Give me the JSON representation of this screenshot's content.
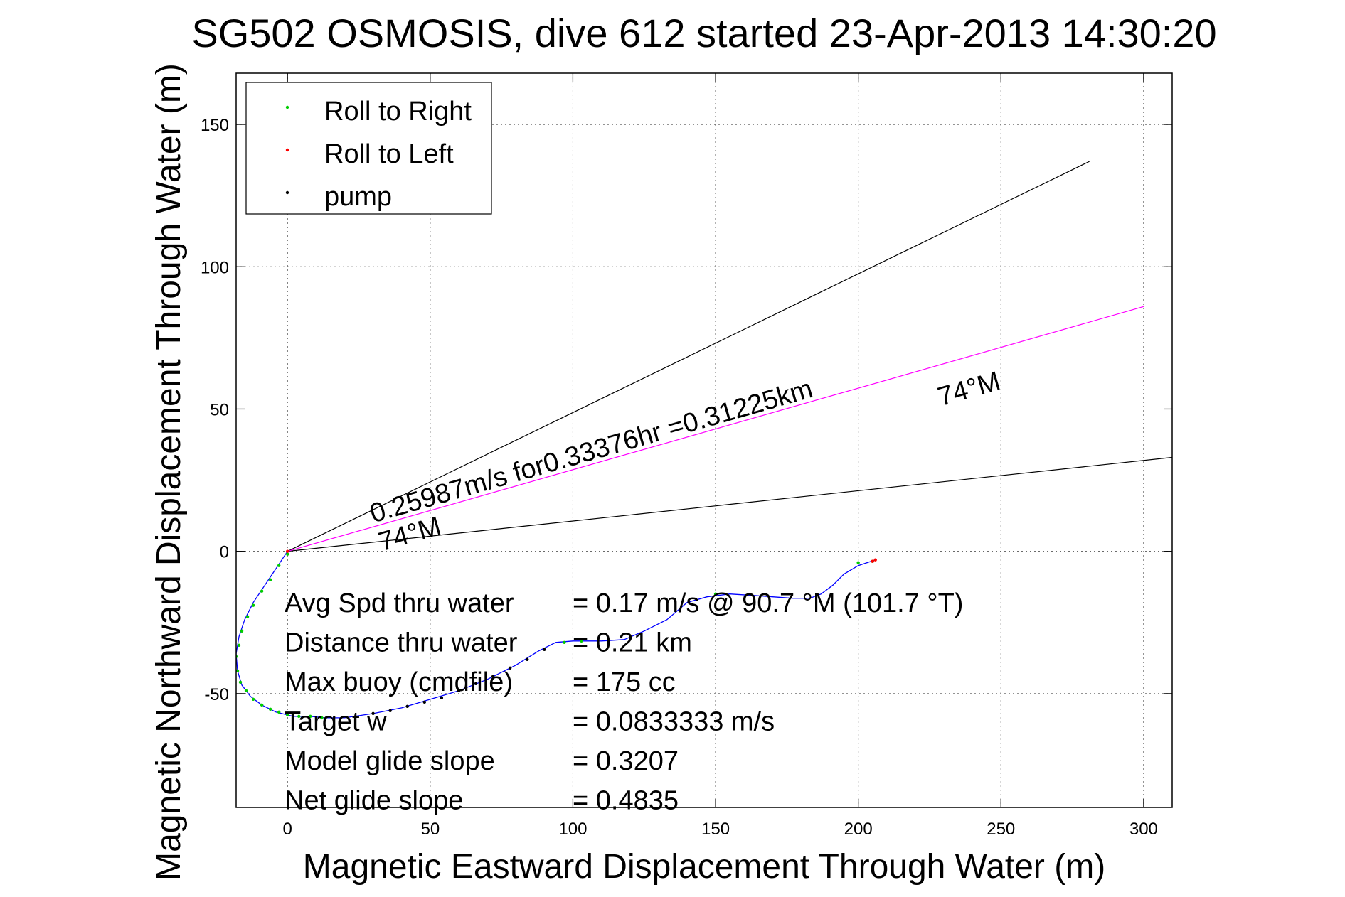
{
  "chart_data": {
    "type": "scatter",
    "title": "SG502 OSMOSIS, dive 612 started 23-Apr-2013 14:30:20",
    "xlabel": "Magnetic Eastward Displacement Through Water (m)",
    "ylabel": "Magnetic Northward Displacement Through Water (m)",
    "xlim": [
      -18,
      310
    ],
    "ylim": [
      -90,
      168
    ],
    "xticks": [
      0,
      50,
      100,
      150,
      200,
      250,
      300
    ],
    "yticks": [
      -50,
      0,
      50,
      100,
      150
    ],
    "grid": true,
    "legend": {
      "placement": "top-left",
      "entries": [
        {
          "label": "Roll to Right",
          "color": "#00cc00"
        },
        {
          "label": "Roll to Left",
          "color": "#ff0000"
        },
        {
          "label": "pump",
          "color": "#000000"
        }
      ]
    },
    "series": [
      {
        "name": "track",
        "kind": "line",
        "color": "#0000ff",
        "x": [
          0,
          -4,
          -8,
          -12,
          -15,
          -17,
          -18,
          -17.5,
          -16,
          -13,
          -9,
          -4,
          2,
          8,
          13,
          20,
          30,
          40,
          50,
          60,
          70,
          80,
          88,
          94,
          100,
          110,
          118,
          125,
          133,
          140,
          147,
          155,
          163,
          170,
          177,
          183,
          187,
          191,
          195,
          200,
          203,
          206
        ],
        "y": [
          0,
          -6,
          -12,
          -18,
          -24,
          -30,
          -36,
          -42,
          -47,
          -51,
          -54,
          -56.5,
          -58,
          -58,
          -58.5,
          -58.5,
          -57,
          -55,
          -52,
          -49,
          -45,
          -40,
          -35,
          -32,
          -31.5,
          -31.5,
          -31,
          -28,
          -24,
          -18,
          -16,
          -15,
          -15.5,
          -16,
          -16.5,
          -16.5,
          -15,
          -12,
          -8,
          -5,
          -4,
          -3
        ]
      },
      {
        "name": "Roll to Right",
        "kind": "points",
        "color": "#00cc00",
        "x": [
          0,
          -3,
          -6,
          -9,
          -12,
          -14,
          -16,
          -17,
          -18,
          -17.5,
          -16.5,
          -14.5,
          -12,
          -9,
          -6,
          -3,
          0,
          4,
          8,
          12,
          97,
          103,
          150,
          200,
          205
        ],
        "y": [
          -1,
          -5,
          -10,
          -14,
          -19,
          -23,
          -28,
          -33,
          -37,
          -42,
          -46,
          -49,
          -52,
          -54,
          -55.5,
          -56.5,
          -57.5,
          -58,
          -58,
          -58.5,
          -32,
          -31.5,
          -15,
          -4,
          -3.5
        ]
      },
      {
        "name": "Roll to Left",
        "kind": "points",
        "color": "#ff0000",
        "x": [
          0,
          205,
          206
        ],
        "y": [
          0,
          -3.5,
          -3
        ]
      },
      {
        "name": "pump",
        "kind": "points",
        "color": "#000000",
        "x": [
          30,
          36,
          42,
          48,
          54,
          60,
          66,
          72,
          78,
          84,
          90
        ],
        "y": [
          -57,
          -56,
          -54.5,
          -53,
          -51.5,
          -49,
          -46.5,
          -44,
          -41,
          -38,
          -34.5
        ]
      }
    ],
    "guide_lines": [
      {
        "name": "upper-bound-line",
        "color": "#000000",
        "x": [
          0,
          281
        ],
        "y": [
          0,
          137
        ]
      },
      {
        "name": "lower-bound-line",
        "color": "#000000",
        "x": [
          0,
          310
        ],
        "y": [
          0,
          33
        ]
      },
      {
        "name": "heading-line",
        "color": "#ff00ff",
        "x": [
          0,
          300
        ],
        "y": [
          0,
          86
        ]
      }
    ],
    "annotations": [
      {
        "name": "speed-annotation",
        "text": "0.25987m/s for0.33376hr =0.31225km",
        "x": 30,
        "y": 10,
        "angle": -16
      },
      {
        "name": "heading-annotation-near",
        "text": "74°M",
        "x": 33,
        "y": 0,
        "angle": -16
      },
      {
        "name": "heading-annotation-far",
        "text": "74°M",
        "x": 229,
        "y": 51,
        "angle": -16
      }
    ],
    "stats": [
      {
        "label": "Avg Spd thru water",
        "value": "=  0.17 m/s @  90.7 °M (101.7 °T)"
      },
      {
        "label": "Distance thru water",
        "value": "=  0.21 km"
      },
      {
        "label": "Max buoy (cmdfile)",
        "value": "= 175 cc"
      },
      {
        "label": "Target w",
        "value": "= 0.0833333 m/s"
      },
      {
        "label": "Model glide slope",
        "value": "= 0.3207"
      },
      {
        "label": "Net glide slope",
        "value": "= 0.4835"
      }
    ]
  }
}
